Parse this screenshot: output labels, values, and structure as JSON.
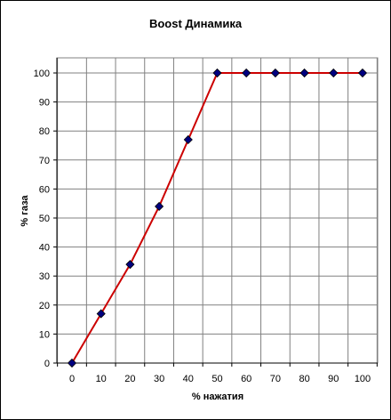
{
  "chart_data": {
    "type": "line",
    "title": "Boost Динамика",
    "xlabel": "% нажатия",
    "ylabel": "% газа",
    "xlim": [
      0,
      100
    ],
    "ylim": [
      0,
      100
    ],
    "x_ticks": [
      0,
      10,
      20,
      30,
      40,
      50,
      60,
      70,
      80,
      90,
      100
    ],
    "y_ticks": [
      0,
      10,
      20,
      30,
      40,
      50,
      60,
      70,
      80,
      90,
      100
    ],
    "grid": true,
    "legend": "none",
    "series": [
      {
        "x": [
          0,
          10,
          20,
          30,
          40,
          50,
          60,
          70,
          80,
          90,
          100
        ],
        "y": [
          0,
          17,
          34,
          54,
          77,
          100,
          100,
          100,
          100,
          100,
          100
        ],
        "line_color": "#cc0000",
        "marker": "diamond",
        "marker_color": "#000080"
      }
    ]
  }
}
